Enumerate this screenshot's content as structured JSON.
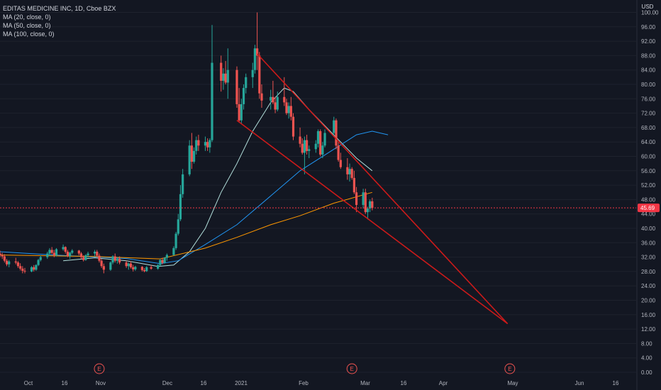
{
  "header": {
    "symbol_line": "EDITAS MEDICINE INC, 1D, Cboe BZX",
    "indicators": [
      "MA (20, close, 0)",
      "MA (50, close, 0)",
      "MA (100, close, 0)"
    ],
    "currency": "USD"
  },
  "price_axis": {
    "ticks": [
      "100.00",
      "96.00",
      "92.00",
      "88.00",
      "84.00",
      "80.00",
      "76.00",
      "72.00",
      "68.00",
      "64.00",
      "60.00",
      "56.00",
      "52.00",
      "48.00",
      "44.00",
      "40.00",
      "36.00",
      "32.00",
      "28.00",
      "24.00",
      "20.00",
      "16.00",
      "12.00",
      "8.00",
      "4.00",
      "0.00"
    ],
    "last_price_label": "45.69"
  },
  "time_axis": {
    "labels": [
      "Oct",
      "16",
      "Nov",
      "Dec",
      "16",
      "2021",
      "Feb",
      "Mar",
      "16",
      "Apr",
      "May",
      "Jun",
      "16"
    ]
  },
  "earnings_markers": [
    "E",
    "E",
    "E"
  ],
  "colors": {
    "background": "#131722",
    "up": "#26a69a",
    "down": "#ef5350",
    "ma20": "#b2dfdb",
    "ma50": "#2196f3",
    "ma100": "#ff9800",
    "trendline": "#cc1a1a",
    "last_price": "#f23645",
    "grid": "#1e222d"
  },
  "chart_data": {
    "type": "candlestick",
    "title": "EDITAS MEDICINE INC, 1D, Cboe BZX",
    "y_unit": "USD",
    "ylim": [
      0,
      100
    ],
    "x_start": "2020-09-21",
    "x_end": "2021-06-30",
    "last_price": 45.69,
    "candles": [
      {
        "date": "2020-09-21",
        "o": 33.0,
        "h": 33.8,
        "l": 32.0,
        "c": 32.5
      },
      {
        "date": "2020-09-22",
        "o": 32.5,
        "h": 33.2,
        "l": 31.5,
        "c": 32.2
      },
      {
        "date": "2020-09-23",
        "o": 32.2,
        "h": 32.8,
        "l": 30.5,
        "c": 31.0
      },
      {
        "date": "2020-09-24",
        "o": 31.0,
        "h": 31.5,
        "l": 29.5,
        "c": 30.0
      },
      {
        "date": "2020-09-25",
        "o": 30.0,
        "h": 31.2,
        "l": 29.2,
        "c": 30.8
      },
      {
        "date": "2020-09-28",
        "o": 30.8,
        "h": 31.8,
        "l": 30.0,
        "c": 30.5
      },
      {
        "date": "2020-09-29",
        "o": 30.5,
        "h": 30.9,
        "l": 29.0,
        "c": 29.5
      },
      {
        "date": "2020-09-30",
        "o": 29.5,
        "h": 30.3,
        "l": 28.3,
        "c": 28.8
      },
      {
        "date": "2020-10-01",
        "o": 28.8,
        "h": 29.5,
        "l": 27.5,
        "c": 28.2
      },
      {
        "date": "2020-10-02",
        "o": 28.2,
        "h": 29.0,
        "l": 27.5,
        "c": 28.0
      },
      {
        "date": "2020-10-05",
        "o": 28.0,
        "h": 29.5,
        "l": 27.8,
        "c": 29.2
      },
      {
        "date": "2020-10-06",
        "o": 29.2,
        "h": 29.8,
        "l": 28.0,
        "c": 28.5
      },
      {
        "date": "2020-10-07",
        "o": 28.5,
        "h": 30.0,
        "l": 28.2,
        "c": 29.8
      },
      {
        "date": "2020-10-08",
        "o": 29.8,
        "h": 31.5,
        "l": 29.5,
        "c": 31.2
      },
      {
        "date": "2020-10-09",
        "o": 31.2,
        "h": 32.5,
        "l": 30.8,
        "c": 32.0
      },
      {
        "date": "2020-10-12",
        "o": 32.0,
        "h": 33.5,
        "l": 31.5,
        "c": 33.0
      },
      {
        "date": "2020-10-13",
        "o": 33.0,
        "h": 34.5,
        "l": 32.5,
        "c": 34.0
      },
      {
        "date": "2020-10-14",
        "o": 34.0,
        "h": 34.8,
        "l": 32.8,
        "c": 33.2
      },
      {
        "date": "2020-10-15",
        "o": 33.2,
        "h": 34.0,
        "l": 32.0,
        "c": 32.5
      },
      {
        "date": "2020-10-16",
        "o": 32.5,
        "h": 34.5,
        "l": 32.2,
        "c": 34.2
      },
      {
        "date": "2020-10-19",
        "o": 34.2,
        "h": 35.5,
        "l": 33.8,
        "c": 34.8
      },
      {
        "date": "2020-10-20",
        "o": 34.8,
        "h": 35.0,
        "l": 33.0,
        "c": 33.5
      },
      {
        "date": "2020-10-21",
        "o": 33.5,
        "h": 34.0,
        "l": 32.0,
        "c": 32.3
      },
      {
        "date": "2020-10-22",
        "o": 32.3,
        "h": 33.5,
        "l": 31.5,
        "c": 33.2
      },
      {
        "date": "2020-10-23",
        "o": 33.2,
        "h": 34.2,
        "l": 32.8,
        "c": 33.8
      },
      {
        "date": "2020-10-26",
        "o": 33.8,
        "h": 34.0,
        "l": 32.5,
        "c": 33.0
      },
      {
        "date": "2020-10-27",
        "o": 33.0,
        "h": 33.4,
        "l": 31.5,
        "c": 32.0
      },
      {
        "date": "2020-10-28",
        "o": 32.0,
        "h": 32.5,
        "l": 30.8,
        "c": 31.2
      },
      {
        "date": "2020-10-29",
        "o": 31.2,
        "h": 32.8,
        "l": 31.0,
        "c": 32.5
      },
      {
        "date": "2020-10-30",
        "o": 32.5,
        "h": 33.5,
        "l": 31.8,
        "c": 33.0
      },
      {
        "date": "2020-11-02",
        "o": 33.0,
        "h": 34.0,
        "l": 32.2,
        "c": 33.5
      },
      {
        "date": "2020-11-03",
        "o": 33.5,
        "h": 34.0,
        "l": 32.0,
        "c": 32.4
      },
      {
        "date": "2020-11-04",
        "o": 32.4,
        "h": 33.0,
        "l": 30.5,
        "c": 31.0
      },
      {
        "date": "2020-11-05",
        "o": 31.0,
        "h": 31.5,
        "l": 29.0,
        "c": 29.5
      },
      {
        "date": "2020-11-06",
        "o": 29.5,
        "h": 30.2,
        "l": 27.5,
        "c": 28.5
      },
      {
        "date": "2020-11-09",
        "o": 28.5,
        "h": 30.8,
        "l": 28.2,
        "c": 30.5
      },
      {
        "date": "2020-11-10",
        "o": 30.5,
        "h": 32.5,
        "l": 30.0,
        "c": 32.2
      },
      {
        "date": "2020-11-11",
        "o": 32.2,
        "h": 33.0,
        "l": 30.5,
        "c": 31.0
      },
      {
        "date": "2020-11-12",
        "o": 31.0,
        "h": 32.0,
        "l": 30.2,
        "c": 31.5
      },
      {
        "date": "2020-11-13",
        "o": 31.5,
        "h": 32.2,
        "l": 30.0,
        "c": 30.5
      },
      {
        "date": "2020-11-16",
        "o": 30.5,
        "h": 31.0,
        "l": 29.0,
        "c": 29.5
      },
      {
        "date": "2020-11-17",
        "o": 29.5,
        "h": 30.5,
        "l": 28.5,
        "c": 30.2
      },
      {
        "date": "2020-11-18",
        "o": 30.2,
        "h": 30.8,
        "l": 28.8,
        "c": 29.2
      },
      {
        "date": "2020-11-19",
        "o": 29.2,
        "h": 29.8,
        "l": 28.0,
        "c": 28.6
      },
      {
        "date": "2020-11-20",
        "o": 28.6,
        "h": 29.6,
        "l": 28.2,
        "c": 29.3
      },
      {
        "date": "2020-11-23",
        "o": 29.3,
        "h": 29.5,
        "l": 28.0,
        "c": 28.4
      },
      {
        "date": "2020-11-24",
        "o": 28.4,
        "h": 29.0,
        "l": 27.8,
        "c": 28.1
      },
      {
        "date": "2020-11-25",
        "o": 28.1,
        "h": 29.5,
        "l": 27.9,
        "c": 29.2
      },
      {
        "date": "2020-11-27",
        "o": 29.2,
        "h": 29.8,
        "l": 28.5,
        "c": 28.8
      },
      {
        "date": "2020-11-30",
        "o": 28.8,
        "h": 30.0,
        "l": 28.5,
        "c": 29.8
      },
      {
        "date": "2020-12-01",
        "o": 29.8,
        "h": 31.5,
        "l": 29.5,
        "c": 31.2
      },
      {
        "date": "2020-12-02",
        "o": 31.2,
        "h": 31.8,
        "l": 30.0,
        "c": 30.4
      },
      {
        "date": "2020-12-03",
        "o": 30.4,
        "h": 32.0,
        "l": 30.2,
        "c": 31.8
      },
      {
        "date": "2020-12-04",
        "o": 31.8,
        "h": 33.0,
        "l": 31.0,
        "c": 32.6
      },
      {
        "date": "2020-12-07",
        "o": 32.6,
        "h": 35.0,
        "l": 32.4,
        "c": 34.5
      },
      {
        "date": "2020-12-08",
        "o": 34.5,
        "h": 39.0,
        "l": 34.0,
        "c": 38.5
      },
      {
        "date": "2020-12-09",
        "o": 38.5,
        "h": 44.0,
        "l": 38.0,
        "c": 42.5
      },
      {
        "date": "2020-12-10",
        "o": 42.5,
        "h": 52.0,
        "l": 42.0,
        "c": 49.5
      },
      {
        "date": "2020-12-11",
        "o": 49.5,
        "h": 56.5,
        "l": 48.5,
        "c": 55.0
      },
      {
        "date": "2020-12-14",
        "o": 55.0,
        "h": 64.5,
        "l": 54.5,
        "c": 63.0
      },
      {
        "date": "2020-12-15",
        "o": 63.0,
        "h": 66.5,
        "l": 56.5,
        "c": 58.5
      },
      {
        "date": "2020-12-16",
        "o": 58.5,
        "h": 62.5,
        "l": 58.0,
        "c": 61.5
      },
      {
        "date": "2020-12-17",
        "o": 61.5,
        "h": 65.5,
        "l": 60.5,
        "c": 64.5
      },
      {
        "date": "2020-12-18",
        "o": 64.5,
        "h": 66.0,
        "l": 61.5,
        "c": 63.0
      },
      {
        "date": "2020-12-21",
        "o": 63.0,
        "h": 65.5,
        "l": 61.5,
        "c": 64.0
      },
      {
        "date": "2020-12-22",
        "o": 64.0,
        "h": 65.0,
        "l": 61.5,
        "c": 62.5
      },
      {
        "date": "2020-12-23",
        "o": 62.5,
        "h": 65.0,
        "l": 61.0,
        "c": 64.5
      },
      {
        "date": "2020-12-24",
        "o": 64.5,
        "h": 96.5,
        "l": 64.0,
        "c": 86.0
      },
      {
        "date": "2020-12-28",
        "o": 86.0,
        "h": 88.0,
        "l": 78.0,
        "c": 81.0
      },
      {
        "date": "2020-12-29",
        "o": 81.0,
        "h": 84.5,
        "l": 78.5,
        "c": 83.0
      },
      {
        "date": "2020-12-30",
        "o": 83.0,
        "h": 86.5,
        "l": 80.0,
        "c": 80.5
      },
      {
        "date": "2020-12-31",
        "o": 80.5,
        "h": 90.0,
        "l": 76.0,
        "c": 84.0
      },
      {
        "date": "2021-01-04",
        "o": 84.0,
        "h": 85.0,
        "l": 73.5,
        "c": 74.5
      },
      {
        "date": "2021-01-05",
        "o": 74.5,
        "h": 79.0,
        "l": 69.5,
        "c": 70.0
      },
      {
        "date": "2021-01-06",
        "o": 70.0,
        "h": 76.0,
        "l": 69.0,
        "c": 74.5
      },
      {
        "date": "2021-01-07",
        "o": 74.5,
        "h": 80.0,
        "l": 73.0,
        "c": 79.0
      },
      {
        "date": "2021-01-08",
        "o": 79.0,
        "h": 83.0,
        "l": 77.5,
        "c": 82.0
      },
      {
        "date": "2021-01-11",
        "o": 82.0,
        "h": 86.0,
        "l": 79.0,
        "c": 84.0
      },
      {
        "date": "2021-01-12",
        "o": 84.0,
        "h": 91.0,
        "l": 83.0,
        "c": 90.0
      },
      {
        "date": "2021-01-13",
        "o": 90.0,
        "h": 100.0,
        "l": 84.0,
        "c": 88.0
      },
      {
        "date": "2021-01-14",
        "o": 88.0,
        "h": 89.0,
        "l": 76.0,
        "c": 77.5
      },
      {
        "date": "2021-01-15",
        "o": 77.5,
        "h": 80.0,
        "l": 73.5,
        "c": 75.5
      },
      {
        "date": "2021-01-19",
        "o": 75.5,
        "h": 78.5,
        "l": 73.0,
        "c": 76.5
      },
      {
        "date": "2021-01-20",
        "o": 76.5,
        "h": 81.0,
        "l": 74.5,
        "c": 75.0
      },
      {
        "date": "2021-01-21",
        "o": 75.0,
        "h": 76.5,
        "l": 72.0,
        "c": 73.0
      },
      {
        "date": "2021-01-22",
        "o": 73.0,
        "h": 78.0,
        "l": 72.5,
        "c": 76.5
      },
      {
        "date": "2021-01-25",
        "o": 76.5,
        "h": 82.0,
        "l": 74.0,
        "c": 75.0
      },
      {
        "date": "2021-01-26",
        "o": 75.0,
        "h": 76.0,
        "l": 71.5,
        "c": 72.0
      },
      {
        "date": "2021-01-27",
        "o": 72.0,
        "h": 75.0,
        "l": 70.5,
        "c": 74.0
      },
      {
        "date": "2021-01-28",
        "o": 74.0,
        "h": 76.5,
        "l": 70.0,
        "c": 71.0
      },
      {
        "date": "2021-01-29",
        "o": 71.0,
        "h": 72.0,
        "l": 64.5,
        "c": 65.5
      },
      {
        "date": "2021-02-01",
        "o": 65.5,
        "h": 68.0,
        "l": 62.5,
        "c": 63.5
      },
      {
        "date": "2021-02-02",
        "o": 63.5,
        "h": 65.0,
        "l": 60.5,
        "c": 61.0
      },
      {
        "date": "2021-02-03",
        "o": 61.0,
        "h": 65.5,
        "l": 55.0,
        "c": 64.5
      },
      {
        "date": "2021-02-04",
        "o": 64.5,
        "h": 66.0,
        "l": 60.5,
        "c": 61.5
      },
      {
        "date": "2021-02-05",
        "o": 61.5,
        "h": 63.0,
        "l": 59.5,
        "c": 62.0
      },
      {
        "date": "2021-02-08",
        "o": 62.0,
        "h": 64.5,
        "l": 61.0,
        "c": 63.5
      },
      {
        "date": "2021-02-09",
        "o": 63.5,
        "h": 67.5,
        "l": 62.5,
        "c": 67.0
      },
      {
        "date": "2021-02-10",
        "o": 67.0,
        "h": 67.5,
        "l": 60.0,
        "c": 60.5
      },
      {
        "date": "2021-02-11",
        "o": 60.5,
        "h": 64.0,
        "l": 59.5,
        "c": 63.0
      },
      {
        "date": "2021-02-12",
        "o": 63.0,
        "h": 67.5,
        "l": 62.5,
        "c": 66.5
      },
      {
        "date": "2021-02-16",
        "o": 66.5,
        "h": 71.0,
        "l": 65.5,
        "c": 70.0
      },
      {
        "date": "2021-02-17",
        "o": 70.0,
        "h": 70.5,
        "l": 62.0,
        "c": 63.0
      },
      {
        "date": "2021-02-18",
        "o": 63.0,
        "h": 64.0,
        "l": 58.5,
        "c": 59.0
      },
      {
        "date": "2021-02-19",
        "o": 59.0,
        "h": 61.0,
        "l": 56.5,
        "c": 57.0
      },
      {
        "date": "2021-02-22",
        "o": 57.0,
        "h": 59.5,
        "l": 53.5,
        "c": 55.0
      },
      {
        "date": "2021-02-23",
        "o": 55.0,
        "h": 58.0,
        "l": 53.0,
        "c": 56.5
      },
      {
        "date": "2021-02-24",
        "o": 56.5,
        "h": 57.0,
        "l": 53.5,
        "c": 54.0
      },
      {
        "date": "2021-02-25",
        "o": 54.0,
        "h": 56.0,
        "l": 49.5,
        "c": 50.0
      },
      {
        "date": "2021-02-26",
        "o": 50.0,
        "h": 51.5,
        "l": 44.5,
        "c": 46.5
      },
      {
        "date": "2021-03-01",
        "o": 46.5,
        "h": 51.0,
        "l": 45.5,
        "c": 50.0
      },
      {
        "date": "2021-03-02",
        "o": 50.0,
        "h": 51.0,
        "l": 44.0,
        "c": 44.5
      },
      {
        "date": "2021-03-03",
        "o": 44.5,
        "h": 46.0,
        "l": 42.5,
        "c": 45.5
      },
      {
        "date": "2021-03-04",
        "o": 45.5,
        "h": 48.0,
        "l": 44.5,
        "c": 47.5
      },
      {
        "date": "2021-03-05",
        "o": 47.5,
        "h": 48.5,
        "l": 45.0,
        "c": 45.69
      }
    ],
    "moving_averages": [
      {
        "name": "MA (20, close, 0)",
        "color": "#b2dfdb",
        "points": [
          [
            "2020-10-19",
            31.0
          ],
          [
            "2020-11-02",
            31.8
          ],
          [
            "2020-11-16",
            31.0
          ],
          [
            "2020-11-30",
            29.4
          ],
          [
            "2020-12-07",
            29.8
          ],
          [
            "2020-12-14",
            33.5
          ],
          [
            "2020-12-21",
            40.0
          ],
          [
            "2020-12-28",
            50.0
          ],
          [
            "2021-01-04",
            58.0
          ],
          [
            "2021-01-11",
            67.0
          ],
          [
            "2021-01-19",
            75.0
          ],
          [
            "2021-01-25",
            79.0
          ],
          [
            "2021-01-29",
            78.0
          ],
          [
            "2021-02-05",
            73.0
          ],
          [
            "2021-02-12",
            68.5
          ],
          [
            "2021-02-19",
            64.0
          ],
          [
            "2021-02-26",
            59.5
          ],
          [
            "2021-03-05",
            56.0
          ]
        ]
      },
      {
        "name": "MA (50, close, 0)",
        "color": "#2196f3",
        "points": [
          [
            "2020-09-21",
            33.5
          ],
          [
            "2020-10-15",
            32.6
          ],
          [
            "2020-11-16",
            31.6
          ],
          [
            "2020-12-01",
            30.2
          ],
          [
            "2020-12-09",
            31.0
          ],
          [
            "2020-12-21",
            35.5
          ],
          [
            "2021-01-04",
            41.0
          ],
          [
            "2021-01-19",
            49.0
          ],
          [
            "2021-02-01",
            56.0
          ],
          [
            "2021-02-16",
            62.0
          ],
          [
            "2021-02-26",
            66.0
          ],
          [
            "2021-03-05",
            67.0
          ],
          [
            "2021-03-12",
            66.0
          ]
        ]
      },
      {
        "name": "MA (100, close, 0)",
        "color": "#ff9800",
        "points": [
          [
            "2020-09-21",
            32.6
          ],
          [
            "2020-11-01",
            32.2
          ],
          [
            "2020-12-01",
            31.5
          ],
          [
            "2020-12-21",
            34.5
          ],
          [
            "2021-01-04",
            37.5
          ],
          [
            "2021-01-19",
            41.0
          ],
          [
            "2021-02-01",
            43.5
          ],
          [
            "2021-02-16",
            47.0
          ],
          [
            "2021-03-05",
            50.0
          ]
        ]
      }
    ],
    "trendlines": [
      {
        "from": [
          "2021-01-13",
          88.5
        ],
        "to": [
          "2021-05-04",
          13.5
        ]
      },
      {
        "from": [
          "2021-01-04",
          70.0
        ],
        "to": [
          "2021-05-04",
          13.5
        ]
      }
    ],
    "earnings_dates": [
      "2020-11-04",
      "2021-02-24",
      "2021-05-05"
    ]
  }
}
